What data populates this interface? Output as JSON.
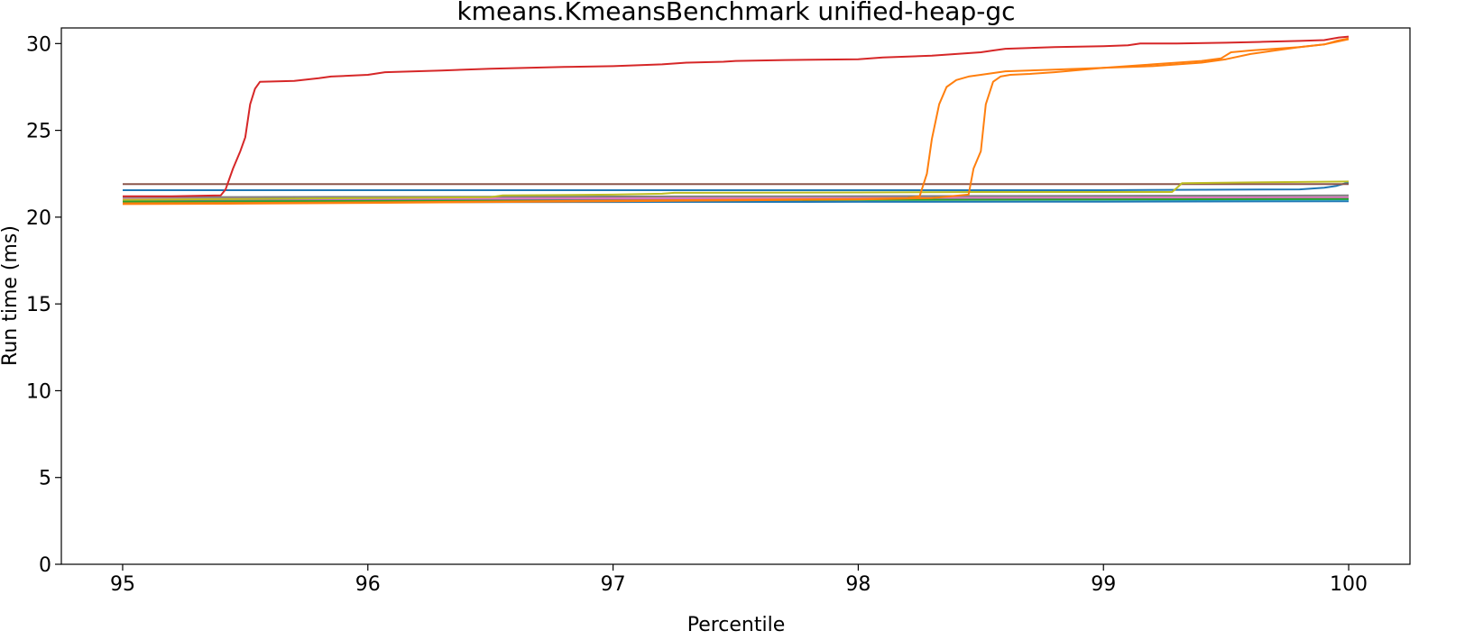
{
  "chart_data": {
    "type": "line",
    "title": "kmeans.KmeansBenchmark unified-heap-gc",
    "xlabel": "Percentile",
    "ylabel": "Run time (ms)",
    "xlim": [
      94.75,
      100.25
    ],
    "ylim": [
      0,
      30.9
    ],
    "xticks": [
      95,
      96,
      97,
      98,
      99,
      100
    ],
    "xtick_labels": [
      "95",
      "96",
      "97",
      "98",
      "99",
      "100"
    ],
    "yticks": [
      0,
      5,
      10,
      15,
      20,
      25,
      30
    ],
    "ytick_labels": [
      "0",
      "5",
      "10",
      "15",
      "20",
      "25",
      "30"
    ],
    "grid": false,
    "legend": "none",
    "series": [
      {
        "color": "#1f77b4",
        "x": [
          95,
          96,
          97,
          98,
          99,
          99.8,
          99.9,
          99.95,
          100
        ],
        "y": [
          21.55,
          21.55,
          21.55,
          21.55,
          21.55,
          21.6,
          21.7,
          21.8,
          22.0
        ]
      },
      {
        "color": "#1f77b4",
        "x": [
          95,
          96,
          97,
          98,
          99,
          100
        ],
        "y": [
          20.85,
          20.86,
          20.87,
          20.88,
          20.89,
          20.92
        ]
      },
      {
        "color": "#17becf",
        "x": [
          95,
          96,
          97,
          98,
          99,
          100
        ],
        "y": [
          20.95,
          20.97,
          20.98,
          20.99,
          21.0,
          21.02
        ]
      },
      {
        "color": "#9467bd",
        "x": [
          95,
          96,
          97,
          98,
          99,
          100
        ],
        "y": [
          21.0,
          21.02,
          21.04,
          21.06,
          21.08,
          21.1
        ]
      },
      {
        "color": "#e377c2",
        "x": [
          95,
          96,
          97,
          98,
          99,
          100
        ],
        "y": [
          21.05,
          21.07,
          21.09,
          21.11,
          21.13,
          21.15
        ]
      },
      {
        "color": "#7f7f7f",
        "x": [
          95,
          96,
          97,
          98,
          99,
          100
        ],
        "y": [
          21.15,
          21.17,
          21.19,
          21.21,
          21.23,
          21.25
        ]
      },
      {
        "color": "#2ca02c",
        "x": [
          95,
          96,
          97,
          98,
          99,
          100
        ],
        "y": [
          20.9,
          20.93,
          20.96,
          20.99,
          21.02,
          21.05
        ]
      },
      {
        "color": "#8c564b",
        "x": [
          95,
          96,
          97,
          98,
          99,
          100
        ],
        "y": [
          21.9,
          21.9,
          21.9,
          21.9,
          21.9,
          21.9
        ]
      },
      {
        "color": "#bcbd22",
        "x": [
          95,
          95.5,
          96,
          96.5,
          96.55,
          97,
          97.2,
          97.25,
          98,
          98.5,
          99,
          99.28,
          99.3,
          99.32,
          99.6,
          100
        ],
        "y": [
          21.0,
          21.05,
          21.1,
          21.15,
          21.25,
          21.3,
          21.35,
          21.4,
          21.42,
          21.45,
          21.45,
          21.45,
          21.7,
          21.95,
          22.0,
          22.05
        ]
      },
      {
        "color": "#ff7f0e",
        "x": [
          95,
          95.5,
          96,
          96.5,
          97,
          97.5,
          98,
          98.2,
          98.25,
          98.28,
          98.3,
          98.33,
          98.36,
          98.4,
          98.45,
          98.5,
          98.6,
          98.8,
          99.0,
          99.2,
          99.4,
          99.5,
          99.6,
          99.7,
          99.8,
          99.9,
          99.95,
          100
        ],
        "y": [
          20.8,
          20.82,
          20.85,
          20.9,
          20.95,
          21.0,
          21.05,
          21.1,
          21.2,
          22.5,
          24.5,
          26.5,
          27.5,
          27.9,
          28.1,
          28.2,
          28.4,
          28.5,
          28.6,
          28.7,
          28.9,
          29.1,
          29.4,
          29.6,
          29.8,
          29.95,
          30.1,
          30.25
        ]
      },
      {
        "color": "#ff7f0e",
        "x": [
          95,
          95.5,
          96,
          96.5,
          97,
          97.5,
          98,
          98.3,
          98.45,
          98.47,
          98.5,
          98.52,
          98.55,
          98.58,
          98.62,
          98.7,
          98.8,
          99.0,
          99.2,
          99.4,
          99.48,
          99.52,
          99.6,
          99.7,
          99.8,
          99.9,
          99.95,
          100
        ],
        "y": [
          20.75,
          20.78,
          20.82,
          20.87,
          20.92,
          20.97,
          21.02,
          21.1,
          21.3,
          22.8,
          23.8,
          26.5,
          27.8,
          28.1,
          28.2,
          28.25,
          28.35,
          28.6,
          28.8,
          29.0,
          29.15,
          29.5,
          29.6,
          29.7,
          29.8,
          29.95,
          30.15,
          30.3
        ]
      },
      {
        "color": "#d62728",
        "x": [
          95,
          95.2,
          95.4,
          95.42,
          95.45,
          95.48,
          95.5,
          95.52,
          95.54,
          95.56,
          95.7,
          95.8,
          95.85,
          96.0,
          96.07,
          96.3,
          96.5,
          96.8,
          97.0,
          97.2,
          97.3,
          97.45,
          97.5,
          97.7,
          98.0,
          98.1,
          98.3,
          98.4,
          98.5,
          98.55,
          98.6,
          98.8,
          99.0,
          99.1,
          99.15,
          99.3,
          99.5,
          99.65,
          99.8,
          99.9,
          99.96,
          100
        ],
        "y": [
          21.2,
          21.2,
          21.25,
          21.6,
          22.8,
          23.8,
          24.6,
          26.5,
          27.4,
          27.8,
          27.85,
          28.0,
          28.1,
          28.2,
          28.35,
          28.45,
          28.55,
          28.65,
          28.7,
          28.8,
          28.9,
          28.95,
          29.0,
          29.05,
          29.1,
          29.2,
          29.3,
          29.4,
          29.5,
          29.6,
          29.7,
          29.8,
          29.85,
          29.9,
          30.0,
          30.0,
          30.05,
          30.1,
          30.15,
          30.2,
          30.35,
          30.4
        ]
      }
    ]
  }
}
